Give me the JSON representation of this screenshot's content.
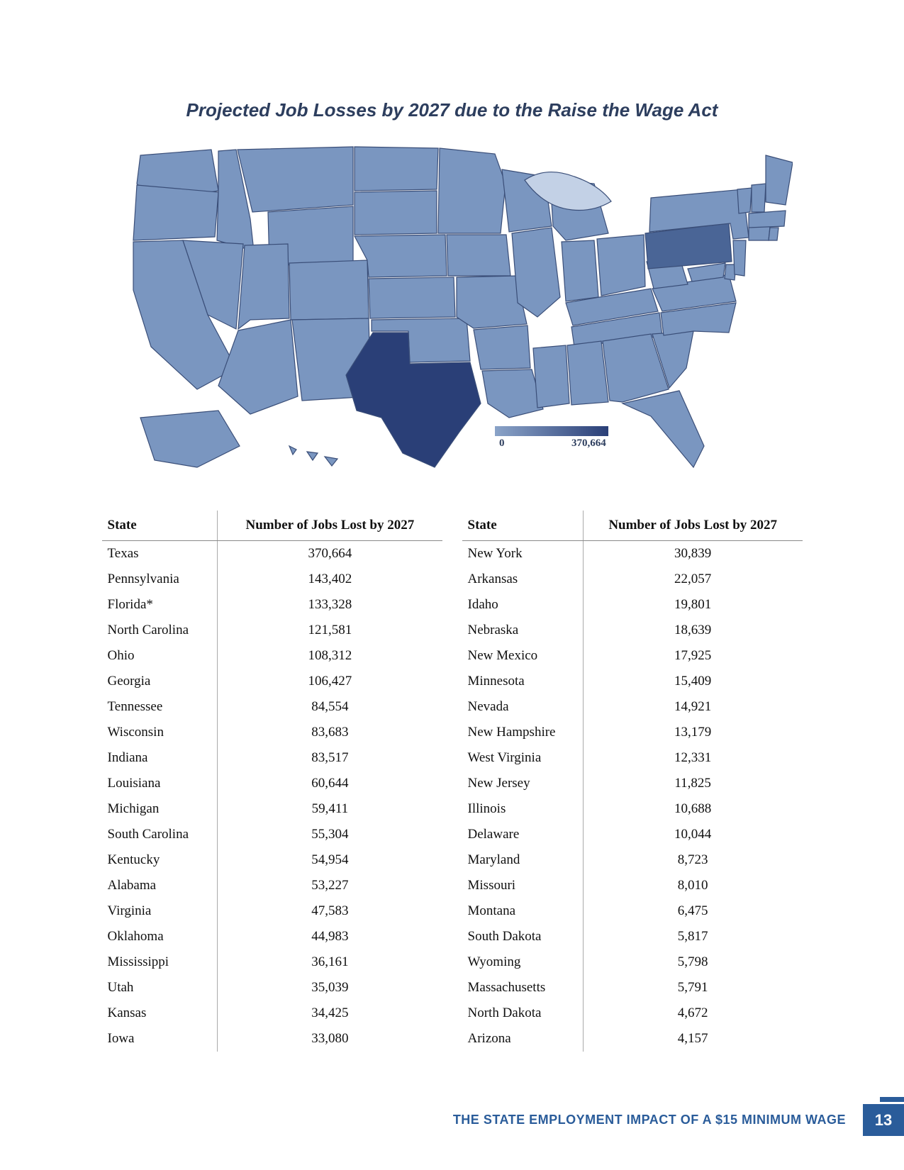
{
  "chart": {
    "title": "Projected Job Losses by 2027 due to the Raise the Wage Act",
    "title_fontsize": 26,
    "title_color": "#2d3e5e",
    "legend_min_label": "0",
    "legend_max_label": "370,664",
    "legend_min_color": "#8aa3c8",
    "legend_max_color": "#2a3f77",
    "background_color": "#ffffff",
    "state_stroke": "#3a4e78",
    "lake_color": "#c3d1e6",
    "highlight": {
      "Texas": "#2a3f77",
      "Pennsylvania": "#4a6596"
    },
    "base_fill": "#7a96c0"
  },
  "table": {
    "header_state": "State",
    "header_jobs": "Number of Jobs Lost by 2027",
    "header_fontsize": 19,
    "row_fontsize": 19,
    "left": [
      {
        "state": "Texas",
        "jobs": "370,664"
      },
      {
        "state": "Pennsylvania",
        "jobs": "143,402"
      },
      {
        "state": "Florida*",
        "jobs": "133,328"
      },
      {
        "state": "North Carolina",
        "jobs": "121,581"
      },
      {
        "state": "Ohio",
        "jobs": "108,312"
      },
      {
        "state": "Georgia",
        "jobs": "106,427"
      },
      {
        "state": "Tennessee",
        "jobs": "84,554"
      },
      {
        "state": "Wisconsin",
        "jobs": "83,683"
      },
      {
        "state": "Indiana",
        "jobs": "83,517"
      },
      {
        "state": "Louisiana",
        "jobs": "60,644"
      },
      {
        "state": "Michigan",
        "jobs": "59,411"
      },
      {
        "state": "South Carolina",
        "jobs": "55,304"
      },
      {
        "state": "Kentucky",
        "jobs": "54,954"
      },
      {
        "state": "Alabama",
        "jobs": "53,227"
      },
      {
        "state": "Virginia",
        "jobs": "47,583"
      },
      {
        "state": "Oklahoma",
        "jobs": "44,983"
      },
      {
        "state": "Mississippi",
        "jobs": "36,161"
      },
      {
        "state": "Utah",
        "jobs": "35,039"
      },
      {
        "state": "Kansas",
        "jobs": "34,425"
      },
      {
        "state": "Iowa",
        "jobs": "33,080"
      }
    ],
    "right": [
      {
        "state": "New York",
        "jobs": "30,839"
      },
      {
        "state": "Arkansas",
        "jobs": "22,057"
      },
      {
        "state": "Idaho",
        "jobs": "19,801"
      },
      {
        "state": "Nebraska",
        "jobs": "18,639"
      },
      {
        "state": "New Mexico",
        "jobs": "17,925"
      },
      {
        "state": "Minnesota",
        "jobs": "15,409"
      },
      {
        "state": "Nevada",
        "jobs": "14,921"
      },
      {
        "state": "New Hampshire",
        "jobs": "13,179"
      },
      {
        "state": "West Virginia",
        "jobs": "12,331"
      },
      {
        "state": "New Jersey",
        "jobs": "11,825"
      },
      {
        "state": "Illinois",
        "jobs": "10,688"
      },
      {
        "state": "Delaware",
        "jobs": "10,044"
      },
      {
        "state": "Maryland",
        "jobs": "8,723"
      },
      {
        "state": "Missouri",
        "jobs": "8,010"
      },
      {
        "state": "Montana",
        "jobs": "6,475"
      },
      {
        "state": "South Dakota",
        "jobs": "5,817"
      },
      {
        "state": "Wyoming",
        "jobs": "5,798"
      },
      {
        "state": "Massachusetts",
        "jobs": "5,791"
      },
      {
        "state": "North Dakota",
        "jobs": "4,672"
      },
      {
        "state": "Arizona",
        "jobs": "4,157"
      }
    ]
  },
  "footer": {
    "title": "THE STATE EMPLOYMENT IMPACT OF A $15 MINIMUM WAGE",
    "title_fontsize": 18,
    "title_color": "#2a5c9a",
    "page": "13",
    "page_bg": "#2a5c9a",
    "page_fontsize": 22
  }
}
